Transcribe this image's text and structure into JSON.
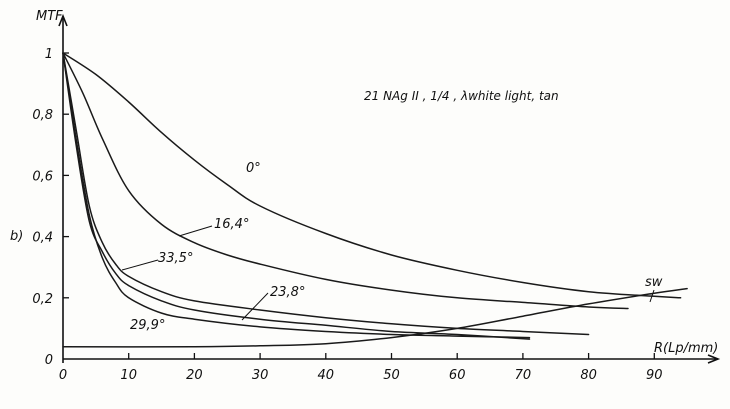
{
  "chart_data": {
    "type": "line",
    "title": "21 NAg II , 1/4 , λwhite light, tan",
    "panel_label": "b)",
    "ylabel": "MTF",
    "xlabel": "R(Lp/mm)",
    "xlim": [
      0,
      95
    ],
    "ylim": [
      0,
      1.05
    ],
    "x_ticks": [
      0,
      10,
      20,
      30,
      40,
      50,
      60,
      70,
      80,
      90
    ],
    "x_tick_labels": [
      "0",
      "10",
      "20",
      "30",
      "40",
      "50",
      "60",
      "70",
      "80",
      "90"
    ],
    "y_ticks": [
      0,
      0.2,
      0.4,
      0.6,
      0.8,
      1
    ],
    "y_tick_labels": [
      "0",
      "0,2",
      "0,4",
      "0,6",
      "0,8",
      "1"
    ],
    "grid": false,
    "series": [
      {
        "name": "0°",
        "label": "0°",
        "x": [
          0,
          5,
          10,
          15,
          20,
          25,
          30,
          40,
          50,
          60,
          70,
          80,
          90,
          94
        ],
        "y": [
          1.0,
          0.93,
          0.84,
          0.74,
          0.65,
          0.57,
          0.5,
          0.41,
          0.34,
          0.29,
          0.25,
          0.22,
          0.205,
          0.2
        ]
      },
      {
        "name": "16,4°",
        "label": "16,4°",
        "x": [
          0,
          3,
          6,
          10,
          15,
          20,
          25,
          30,
          40,
          50,
          60,
          70,
          80,
          86
        ],
        "y": [
          1.0,
          0.87,
          0.72,
          0.55,
          0.44,
          0.38,
          0.34,
          0.31,
          0.26,
          0.225,
          0.2,
          0.185,
          0.17,
          0.165
        ]
      },
      {
        "name": "23,8°",
        "label": "23,8°",
        "x": [
          0,
          2,
          4,
          6,
          8,
          10,
          15,
          20,
          30,
          40,
          50,
          60,
          70,
          80
        ],
        "y": [
          1.0,
          0.75,
          0.5,
          0.38,
          0.31,
          0.27,
          0.22,
          0.19,
          0.16,
          0.135,
          0.115,
          0.1,
          0.09,
          0.08
        ]
      },
      {
        "name": "29,9°",
        "label": "29,9°",
        "x": [
          0,
          2,
          4,
          6,
          8,
          10,
          15,
          20,
          30,
          40,
          50,
          60,
          71
        ],
        "y": [
          1.0,
          0.72,
          0.47,
          0.33,
          0.25,
          0.2,
          0.15,
          0.13,
          0.105,
          0.09,
          0.08,
          0.075,
          0.07
        ]
      },
      {
        "name": "33,5°",
        "label": "33,5°",
        "x": [
          0,
          2,
          4,
          6,
          8,
          10,
          15,
          20,
          30,
          40,
          50,
          60,
          71
        ],
        "y": [
          1.0,
          0.7,
          0.45,
          0.35,
          0.28,
          0.24,
          0.19,
          0.16,
          0.13,
          0.11,
          0.09,
          0.08,
          0.065
        ]
      },
      {
        "name": "sw",
        "label": "sw",
        "x": [
          0,
          20,
          30,
          40,
          50,
          60,
          70,
          80,
          90,
          95
        ],
        "y": [
          0.04,
          0.04,
          0.043,
          0.05,
          0.07,
          0.1,
          0.14,
          0.18,
          0.215,
          0.23
        ]
      }
    ]
  }
}
